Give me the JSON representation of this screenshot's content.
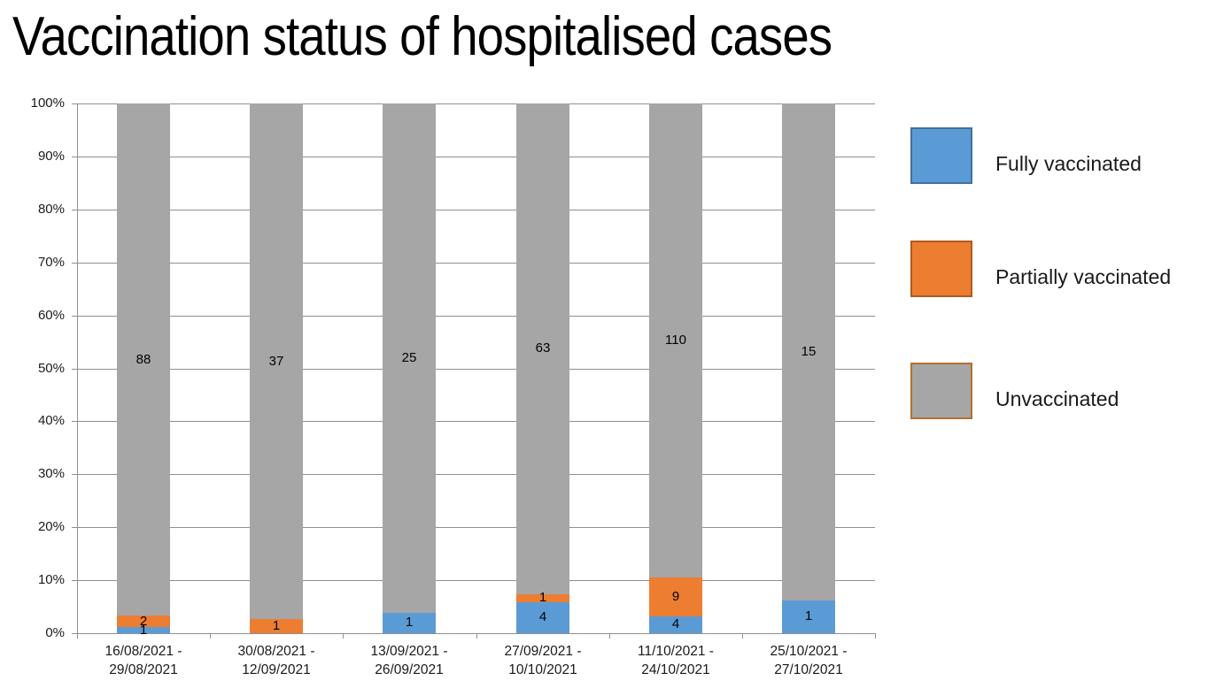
{
  "chart_data": {
    "type": "stacked-bar-100",
    "title": "Vaccination status of hospitalised cases",
    "categories": [
      "16/08/2021 -\n29/08/2021",
      "30/08/2021 -\n12/09/2021",
      "13/09/2021 -\n26/09/2021",
      "27/09/2021 -\n10/10/2021",
      "11/10/2021 -\n24/10/2021",
      "25/10/2021 -\n27/10/2021"
    ],
    "series": [
      {
        "name": "Fully vaccinated",
        "color": "#5B9BD5",
        "border_color": "#41719C",
        "values": [
          1,
          0,
          1,
          4,
          4,
          1
        ]
      },
      {
        "name": "Partially vaccinated",
        "color": "#ED7D31",
        "border_color": "#AE5A21",
        "values": [
          2,
          1,
          0,
          1,
          9,
          0
        ]
      },
      {
        "name": "Unvaccinated",
        "color": "#A6A6A6",
        "border_color": "#B2712D",
        "values": [
          88,
          37,
          25,
          63,
          110,
          15
        ]
      }
    ],
    "y_axis": {
      "min": 0,
      "max": 100,
      "ticks": [
        "0%",
        "10%",
        "20%",
        "30%",
        "40%",
        "50%",
        "60%",
        "70%",
        "80%",
        "90%",
        "100%"
      ]
    },
    "grid": true,
    "grid_color": "#909090",
    "axis_color": "#909090",
    "legend_position": "right",
    "data_labels_shown": true
  }
}
